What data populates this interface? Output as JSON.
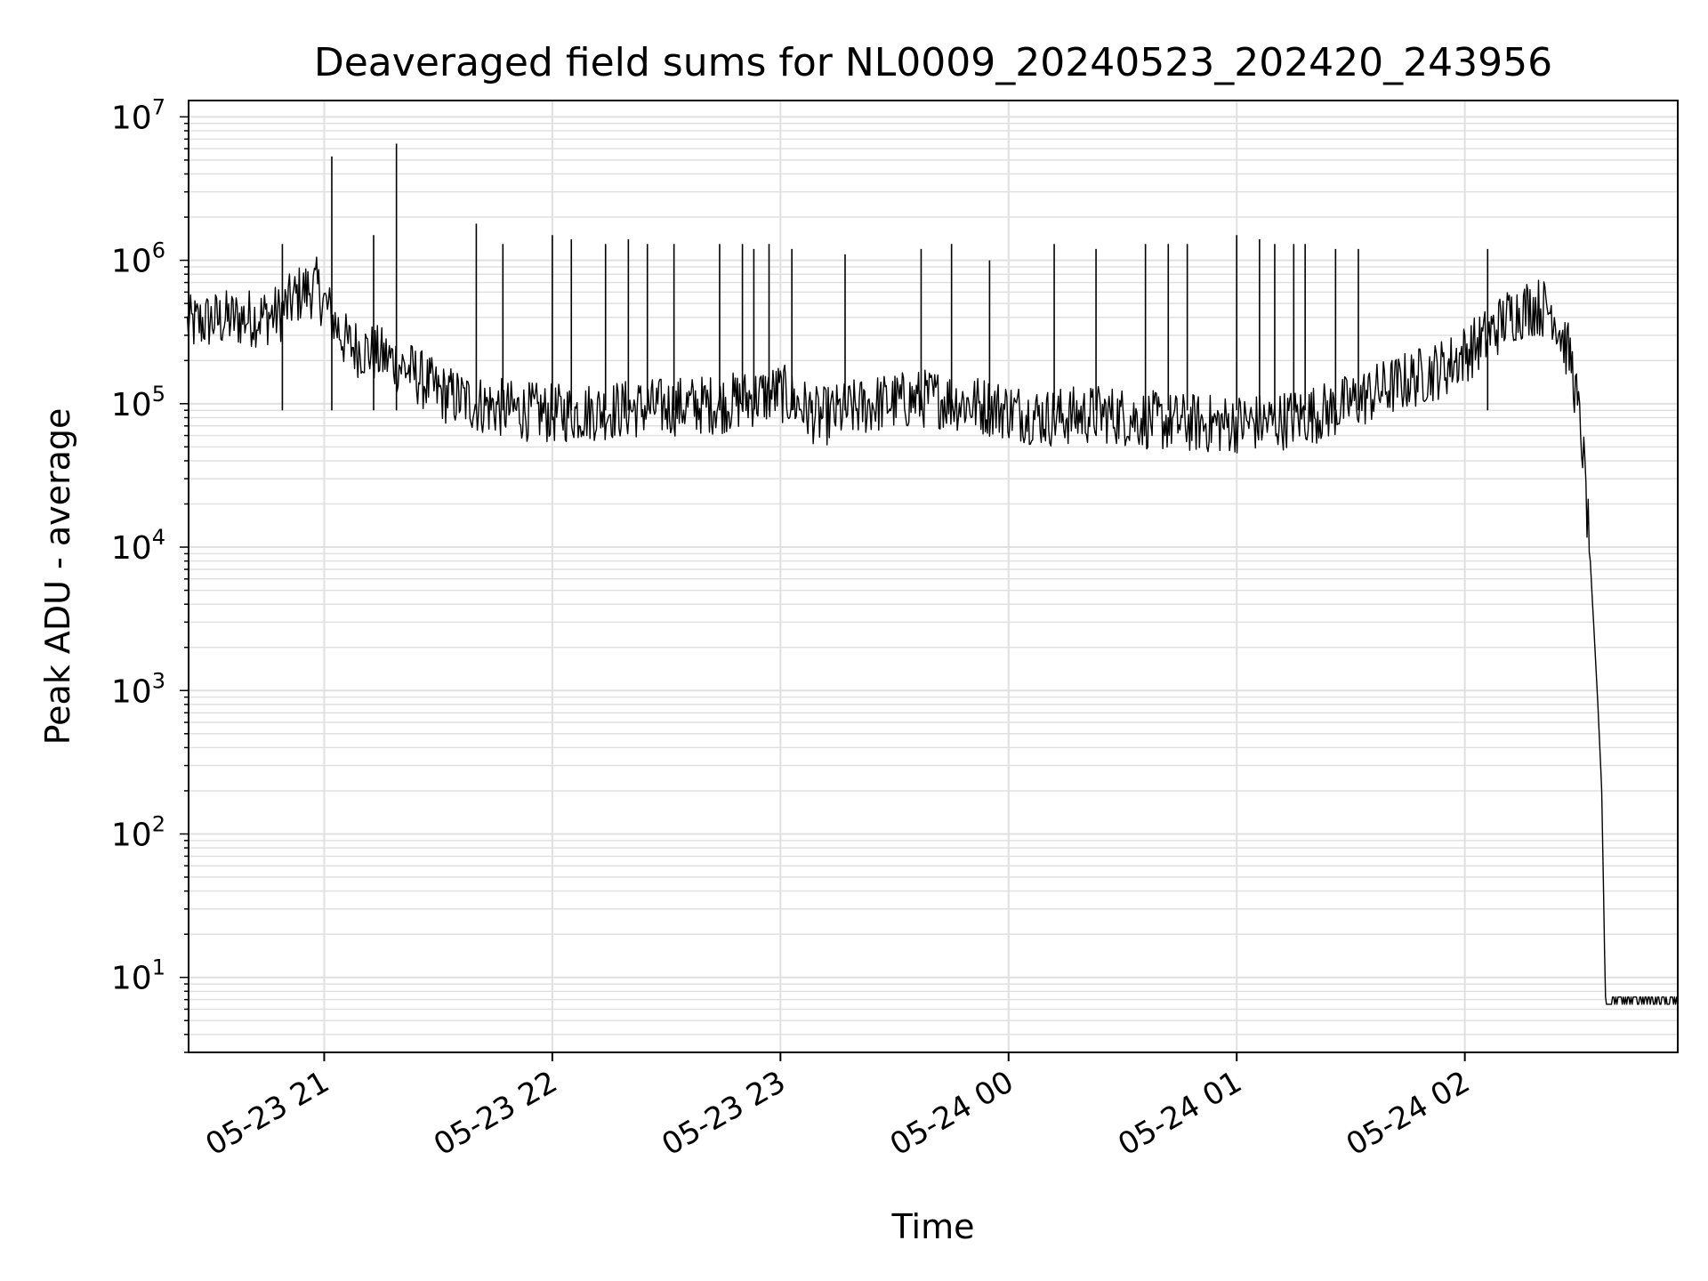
{
  "chart_data": {
    "type": "line",
    "title": "Deaveraged field sums for NL0009_20240523_202420_243956",
    "xlabel": "Time",
    "ylabel": "Peak ADU - average",
    "yscale": "log",
    "ylim": [
      3,
      13000000
    ],
    "xlim": [
      "2024-05-23 20:24:20",
      "2024-05-24 02:56:00"
    ],
    "grid": true,
    "line_color": "#000000",
    "grid_color": "#e0e0e0",
    "x_ticks": [
      "2024-05-23 21:00",
      "2024-05-23 22:00",
      "2024-05-23 23:00",
      "2024-05-24 00:00",
      "2024-05-24 01:00",
      "2024-05-24 02:00"
    ],
    "x_tick_labels": [
      "05-23 21",
      "05-23 22",
      "05-23 23",
      "05-24 00",
      "05-24 01",
      "05-24 02"
    ],
    "y_ticks": [
      10,
      100,
      1000,
      10000,
      100000,
      1000000,
      10000000
    ],
    "y_tick_labels": [
      {
        "base": "10",
        "exp": "1"
      },
      {
        "base": "10",
        "exp": "2"
      },
      {
        "base": "10",
        "exp": "3"
      },
      {
        "base": "10",
        "exp": "4"
      },
      {
        "base": "10",
        "exp": "5"
      },
      {
        "base": "10",
        "exp": "6"
      },
      {
        "base": "10",
        "exp": "7"
      }
    ],
    "series": [
      {
        "x": [
          "2024-05-23 20:24",
          "2024-05-23 20:30",
          "2024-05-23 20:36",
          "2024-05-23 20:42",
          "2024-05-23 20:48",
          "2024-05-23 20:54",
          "2024-05-23 20:58",
          "2024-05-23 21:02",
          "2024-05-23 21:06",
          "2024-05-23 21:12",
          "2024-05-23 21:18",
          "2024-05-23 21:24",
          "2024-05-23 21:30",
          "2024-05-23 21:40",
          "2024-05-23 21:50",
          "2024-05-23 22:00",
          "2024-05-23 22:15",
          "2024-05-23 22:30",
          "2024-05-23 22:45",
          "2024-05-23 23:00",
          "2024-05-23 23:10",
          "2024-05-23 23:25",
          "2024-05-23 23:40",
          "2024-05-23 23:55",
          "2024-05-24 00:10",
          "2024-05-24 00:25",
          "2024-05-24 00:40",
          "2024-05-24 00:55",
          "2024-05-24 01:10",
          "2024-05-24 01:25",
          "2024-05-24 01:40",
          "2024-05-24 01:55",
          "2024-05-24 02:05",
          "2024-05-24 02:12",
          "2024-05-24 02:18",
          "2024-05-24 02:23",
          "2024-05-24 02:28",
          "2024-05-24 02:31",
          "2024-05-24 02:33",
          "2024-05-24 02:35",
          "2024-05-24 02:36",
          "2024-05-24 02:37",
          "2024-05-24 02:38",
          "2024-05-24 02:46",
          "2024-05-24 02:56"
        ],
        "values": [
          350000,
          380000,
          390000,
          400000,
          420000,
          600000,
          650000,
          400000,
          260000,
          230000,
          200000,
          160000,
          120000,
          100000,
          90000,
          85000,
          90000,
          95000,
          100000,
          120000,
          80000,
          100000,
          110000,
          95000,
          80000,
          85000,
          75000,
          72000,
          75000,
          90000,
          130000,
          180000,
          280000,
          420000,
          480000,
          450000,
          200000,
          50000,
          8000,
          800,
          200,
          6.5,
          6.5,
          6.5,
          6.5
        ]
      }
    ],
    "spikes": {
      "x": [
        "2024-05-23 20:49",
        "2024-05-23 21:02",
        "2024-05-23 21:13",
        "2024-05-23 21:19",
        "2024-05-23 21:40",
        "2024-05-23 21:47",
        "2024-05-23 22:00",
        "2024-05-23 22:05",
        "2024-05-23 22:14",
        "2024-05-23 22:20",
        "2024-05-23 22:25",
        "2024-05-23 22:32",
        "2024-05-23 22:44",
        "2024-05-23 22:50",
        "2024-05-23 22:53",
        "2024-05-23 22:57",
        "2024-05-23 23:03",
        "2024-05-23 23:17",
        "2024-05-23 23:37",
        "2024-05-23 23:45",
        "2024-05-23 23:55",
        "2024-05-24 00:12",
        "2024-05-24 00:23",
        "2024-05-24 00:36",
        "2024-05-24 00:42",
        "2024-05-24 00:47",
        "2024-05-24 01:00",
        "2024-05-24 01:06",
        "2024-05-24 01:10",
        "2024-05-24 01:15",
        "2024-05-24 01:18",
        "2024-05-24 01:26",
        "2024-05-24 01:32",
        "2024-05-24 02:06"
      ],
      "values": [
        1300000,
        5300000,
        1500000,
        6500000,
        1800000,
        1300000,
        1500000,
        1400000,
        1300000,
        1400000,
        1300000,
        1300000,
        1300000,
        1300000,
        1200000,
        1300000,
        1200000,
        1100000,
        1200000,
        1300000,
        1000000,
        1300000,
        1200000,
        1300000,
        1300000,
        1300000,
        1500000,
        1400000,
        1300000,
        1300000,
        1300000,
        1200000,
        1200000,
        1200000
      ]
    }
  }
}
